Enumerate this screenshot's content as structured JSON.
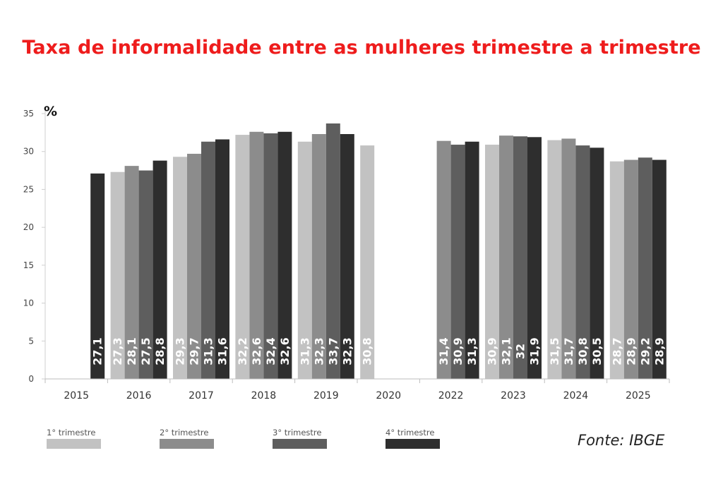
{
  "chart_data": {
    "type": "bar",
    "title": "Taxa de informalidade entre as mulheres trimestre a trimestre",
    "ylabel": "%",
    "ylim": [
      0,
      35
    ],
    "yticks": [
      0,
      5,
      10,
      15,
      20,
      25,
      30,
      35
    ],
    "categories": [
      "2015",
      "2016",
      "2017",
      "2018",
      "2019",
      "2020",
      "2022",
      "2023",
      "2024",
      "2025"
    ],
    "series": [
      {
        "name": "1° trimestre",
        "color": "#c2c2c2",
        "values": [
          null,
          27.3,
          29.3,
          32.2,
          31.3,
          30.8,
          null,
          30.9,
          31.5,
          28.7
        ],
        "labels": [
          null,
          "27,3",
          "29,3",
          "32,2",
          "31,3",
          "30,8",
          null,
          "30,9",
          "31,5",
          "28,7"
        ]
      },
      {
        "name": "2° trimestre",
        "color": "#8c8c8c",
        "values": [
          null,
          28.1,
          29.7,
          32.6,
          32.3,
          null,
          31.4,
          32.1,
          31.7,
          28.9
        ],
        "labels": [
          null,
          "28,1",
          "29,7",
          "32,6",
          "32,3",
          null,
          "31,4",
          "32,1",
          "31,7",
          "28,9"
        ]
      },
      {
        "name": "3° trimestre",
        "color": "#5e5e5e",
        "values": [
          null,
          27.5,
          31.3,
          32.4,
          33.7,
          null,
          30.9,
          32,
          30.8,
          29.2
        ],
        "labels": [
          null,
          "27,5",
          "31,3",
          "32,4",
          "33,7",
          null,
          "30,9",
          "32",
          "30,8",
          "29,2"
        ]
      },
      {
        "name": "4° trimestre",
        "color": "#2e2e2e",
        "values": [
          27.1,
          28.8,
          31.6,
          32.6,
          32.3,
          null,
          31.3,
          31.9,
          30.5,
          28.9
        ],
        "labels": [
          "27,1",
          "28,8",
          "31,6",
          "32,6",
          "32,3",
          null,
          "31,3",
          "31,9",
          "30,5",
          "28,9"
        ]
      }
    ],
    "legend_position": "bottom-left",
    "grid": false
  },
  "source": "Fonte: IBGE"
}
